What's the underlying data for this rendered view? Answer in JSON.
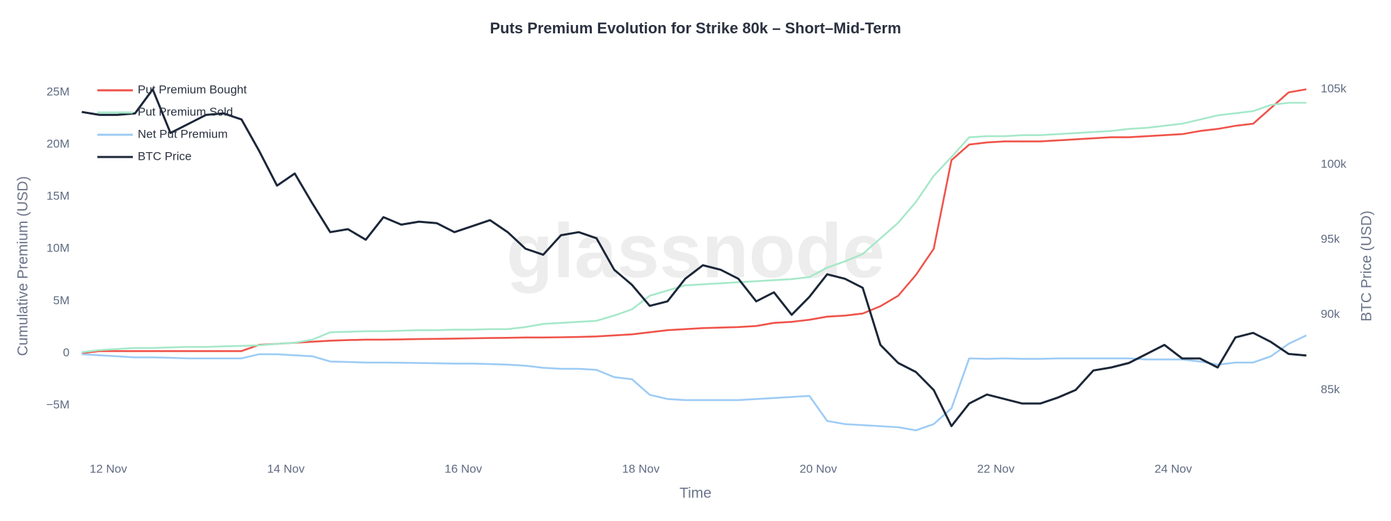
{
  "chart_data": {
    "type": "line",
    "title": "Puts Premium Evolution for Strike 80k – Short–Mid-Term",
    "xlabel": "Time",
    "ylabel": "Cumulative Premium (USD)",
    "y2label": "BTC Price (USD)",
    "watermark": "glassnode",
    "legend": "top-left",
    "grid": false,
    "x": [
      11.7,
      11.9,
      12.1,
      12.3,
      12.5,
      12.7,
      12.9,
      13.1,
      13.3,
      13.5,
      13.7,
      13.9,
      14.1,
      14.3,
      14.5,
      14.7,
      14.9,
      15.1,
      15.3,
      15.5,
      15.7,
      15.9,
      16.1,
      16.3,
      16.5,
      16.7,
      16.9,
      17.1,
      17.3,
      17.5,
      17.7,
      17.9,
      18.1,
      18.3,
      18.5,
      18.7,
      18.9,
      19.1,
      19.3,
      19.5,
      19.7,
      19.9,
      20.1,
      20.3,
      20.5,
      20.7,
      20.9,
      21.1,
      21.3,
      21.5,
      21.7,
      21.9,
      22.1,
      22.3,
      22.5,
      22.7,
      22.9,
      23.1,
      23.3,
      23.5,
      23.7,
      23.9,
      24.1,
      24.3,
      24.5,
      24.7,
      24.9,
      25.1,
      25.3,
      25.5
    ],
    "xlim": [
      11.68,
      25.56
    ],
    "xticks": [
      {
        "value": 12,
        "label": "12 Nov"
      },
      {
        "value": 14,
        "label": "14 Nov"
      },
      {
        "value": 16,
        "label": "16 Nov"
      },
      {
        "value": 18,
        "label": "18 Nov"
      },
      {
        "value": 20,
        "label": "20 Nov"
      },
      {
        "value": 22,
        "label": "22 Nov"
      },
      {
        "value": 24,
        "label": "24 Nov"
      }
    ],
    "ylim": [
      -9300000,
      26400000
    ],
    "yticks": [
      {
        "value": -5000000,
        "label": "−5M"
      },
      0,
      {
        "value": 5000000,
        "label": "5M"
      },
      {
        "value": 10000000,
        "label": "10M"
      },
      {
        "value": 15000000,
        "label": "15M"
      },
      {
        "value": 20000000,
        "label": "20M"
      },
      {
        "value": 25000000,
        "label": "25M"
      }
    ],
    "y2lim": [
      81000,
      105770
    ],
    "y2ticks": [
      {
        "value": 85000,
        "label": "85k"
      },
      {
        "value": 90000,
        "label": "90k"
      },
      {
        "value": 95000,
        "label": "95k"
      },
      {
        "value": 100000,
        "label": "100k"
      },
      {
        "value": 105000,
        "label": "105k"
      }
    ],
    "series": [
      {
        "name": "Put Premium Bought",
        "color": "#ef5249",
        "values": [
          0,
          200000,
          200000,
          200000,
          200000,
          200000,
          200000,
          200000,
          200000,
          200000,
          800000,
          900000,
          1000000,
          1100000,
          1200000,
          1250000,
          1300000,
          1300000,
          1320000,
          1350000,
          1370000,
          1400000,
          1420000,
          1450000,
          1470000,
          1500000,
          1500000,
          1520000,
          1550000,
          1600000,
          1700000,
          1800000,
          2000000,
          2200000,
          2300000,
          2400000,
          2450000,
          2500000,
          2600000,
          2900000,
          3000000,
          3200000,
          3500000,
          3600000,
          3800000,
          4500000,
          5500000,
          7500000,
          10000000,
          18500000,
          20000000,
          20200000,
          20300000,
          20300000,
          20300000,
          20400000,
          20500000,
          20600000,
          20700000,
          20700000,
          20800000,
          20900000,
          21000000,
          21300000,
          21500000,
          21800000,
          22000000,
          23500000,
          25000000,
          25300000
        ]
      },
      {
        "name": "Put Premium Sold",
        "color": "#a6e8c9",
        "values": [
          100000,
          300000,
          400000,
          500000,
          500000,
          550000,
          600000,
          600000,
          650000,
          700000,
          750000,
          900000,
          1000000,
          1300000,
          2000000,
          2050000,
          2100000,
          2100000,
          2150000,
          2200000,
          2200000,
          2250000,
          2250000,
          2300000,
          2300000,
          2500000,
          2800000,
          2900000,
          3000000,
          3100000,
          3600000,
          4200000,
          5500000,
          6000000,
          6500000,
          6600000,
          6700000,
          6800000,
          6900000,
          7000000,
          7100000,
          7300000,
          8200000,
          8800000,
          9500000,
          11000000,
          12500000,
          14500000,
          17000000,
          18800000,
          20700000,
          20800000,
          20800000,
          20900000,
          20900000,
          21000000,
          21100000,
          21200000,
          21300000,
          21500000,
          21600000,
          21800000,
          22000000,
          22400000,
          22800000,
          23000000,
          23200000,
          23800000,
          24000000,
          24000000
        ]
      },
      {
        "name": "Net Put Premium",
        "color": "#9ccbf5",
        "values": [
          -100000,
          -200000,
          -300000,
          -400000,
          -400000,
          -450000,
          -500000,
          -500000,
          -500000,
          -500000,
          -100000,
          -100000,
          -200000,
          -300000,
          -800000,
          -850000,
          -900000,
          -900000,
          -920000,
          -950000,
          -970000,
          -1000000,
          -1000000,
          -1050000,
          -1100000,
          -1200000,
          -1400000,
          -1500000,
          -1500000,
          -1600000,
          -2300000,
          -2500000,
          -4000000,
          -4400000,
          -4500000,
          -4500000,
          -4500000,
          -4500000,
          -4400000,
          -4300000,
          -4200000,
          -4100000,
          -6500000,
          -6800000,
          -6900000,
          -7000000,
          -7100000,
          -7400000,
          -6800000,
          -5300000,
          -500000,
          -550000,
          -500000,
          -550000,
          -550000,
          -500000,
          -500000,
          -500000,
          -500000,
          -500000,
          -600000,
          -600000,
          -600000,
          -800000,
          -1100000,
          -900000,
          -900000,
          -300000,
          900000,
          1700000
        ]
      },
      {
        "name": "BTC Price",
        "color": "#1b2638",
        "axis": "y2",
        "values": [
          103500,
          103300,
          103300,
          103400,
          105000,
          102100,
          102700,
          103300,
          103400,
          103000,
          100900,
          98600,
          99400,
          97400,
          95500,
          95700,
          95000,
          96500,
          96000,
          96200,
          96100,
          95500,
          95900,
          96300,
          95500,
          94400,
          94000,
          95300,
          95500,
          95100,
          93000,
          92000,
          90600,
          90900,
          92400,
          93300,
          93000,
          92400,
          90900,
          91500,
          90000,
          91200,
          92700,
          92400,
          91800,
          88000,
          86800,
          86200,
          85000,
          82600,
          84100,
          84700,
          84400,
          84100,
          84100,
          84500,
          85000,
          86300,
          86500,
          86800,
          87400,
          88000,
          87100,
          87100,
          86500,
          88500,
          88800,
          88200,
          87400,
          87300
        ]
      }
    ]
  }
}
